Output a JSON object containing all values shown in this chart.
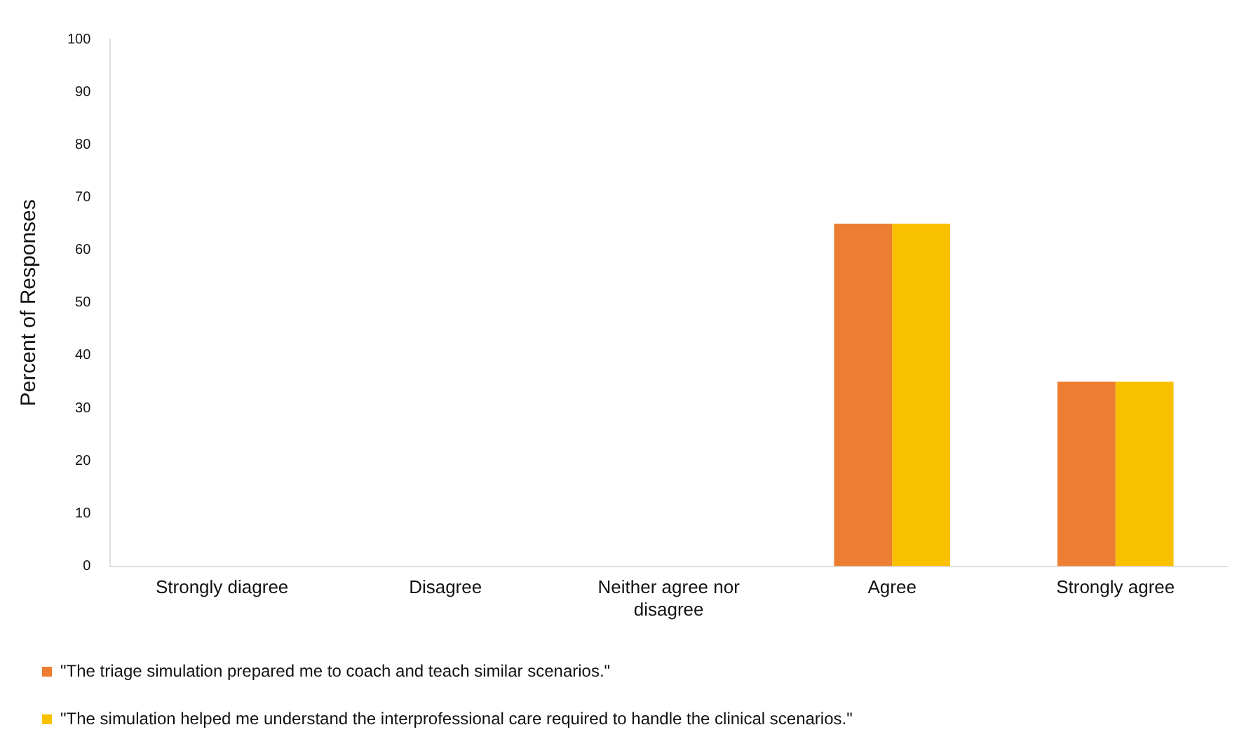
{
  "chart_data": {
    "type": "bar",
    "ylabel": "Percent of Responses",
    "categories": [
      "Strongly diagree",
      "Disagree",
      "Neither agree nor disagree",
      "Agree",
      "Strongly agree"
    ],
    "series": [
      {
        "name": "\"The triage simulation prepared me to coach and teach similar scenarios.\"",
        "color": "#ed7d31",
        "values": [
          0,
          0,
          0,
          65,
          35
        ]
      },
      {
        "name": "\"The simulation helped me understand the interprofessional care required to handle the clinical scenarios.\"",
        "color": "#f9c000",
        "values": [
          0,
          0,
          0,
          65,
          35
        ]
      }
    ],
    "ylim": [
      0,
      100
    ],
    "yticks": [
      0,
      10,
      20,
      30,
      40,
      50,
      60,
      70,
      80,
      90,
      100
    ],
    "grid": false,
    "legend": "bottom"
  }
}
